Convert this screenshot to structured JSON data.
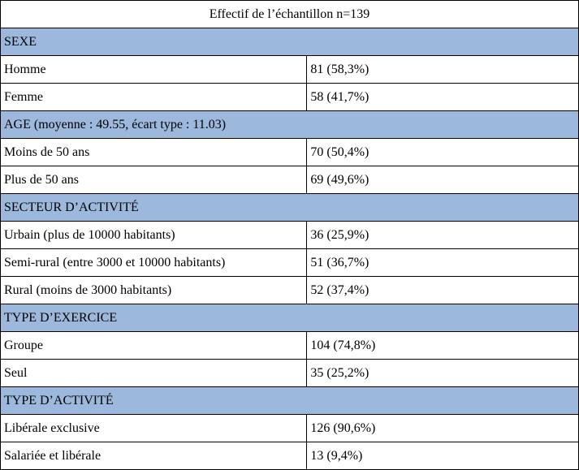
{
  "table": {
    "title": "Effectif de l’échantillon n=139",
    "section_bg": "#9cb8dc",
    "border_color": "#000000",
    "font_family": "Times New Roman",
    "sections": [
      {
        "header": "SEXE",
        "rows": [
          {
            "label": "Homme",
            "value": "81 (58,3%)"
          },
          {
            "label": "Femme",
            "value": "58 (41,7%)"
          }
        ]
      },
      {
        "header": "AGE (moyenne : 49.55, écart type : 11.03)",
        "rows": [
          {
            "label": "Moins de 50 ans",
            "value": "70 (50,4%)"
          },
          {
            "label": "Plus de 50 ans",
            "value": "69 (49,6%)"
          }
        ]
      },
      {
        "header": "SECTEUR D’ACTIVITÉ",
        "rows": [
          {
            "label": "Urbain (plus de 10000 habitants)",
            "value": "36 (25,9%)"
          },
          {
            "label": "Semi-rural (entre 3000 et 10000 habitants)",
            "value": "51 (36,7%)"
          },
          {
            "label": "Rural (moins de 3000 habitants)",
            "value": "52 (37,4%)"
          }
        ]
      },
      {
        "header": "TYPE D’EXERCICE",
        "rows": [
          {
            "label": "Groupe",
            "value": "104 (74,8%)"
          },
          {
            "label": "Seul",
            "value": "35 (25,2%)"
          }
        ]
      },
      {
        "header": "TYPE D’ACTIVITÉ",
        "rows": [
          {
            "label": "Libérale exclusive",
            "value": "126 (90,6%)"
          },
          {
            "label": "Salariée et libérale",
            "value": "13 (9,4%)"
          }
        ]
      }
    ]
  }
}
